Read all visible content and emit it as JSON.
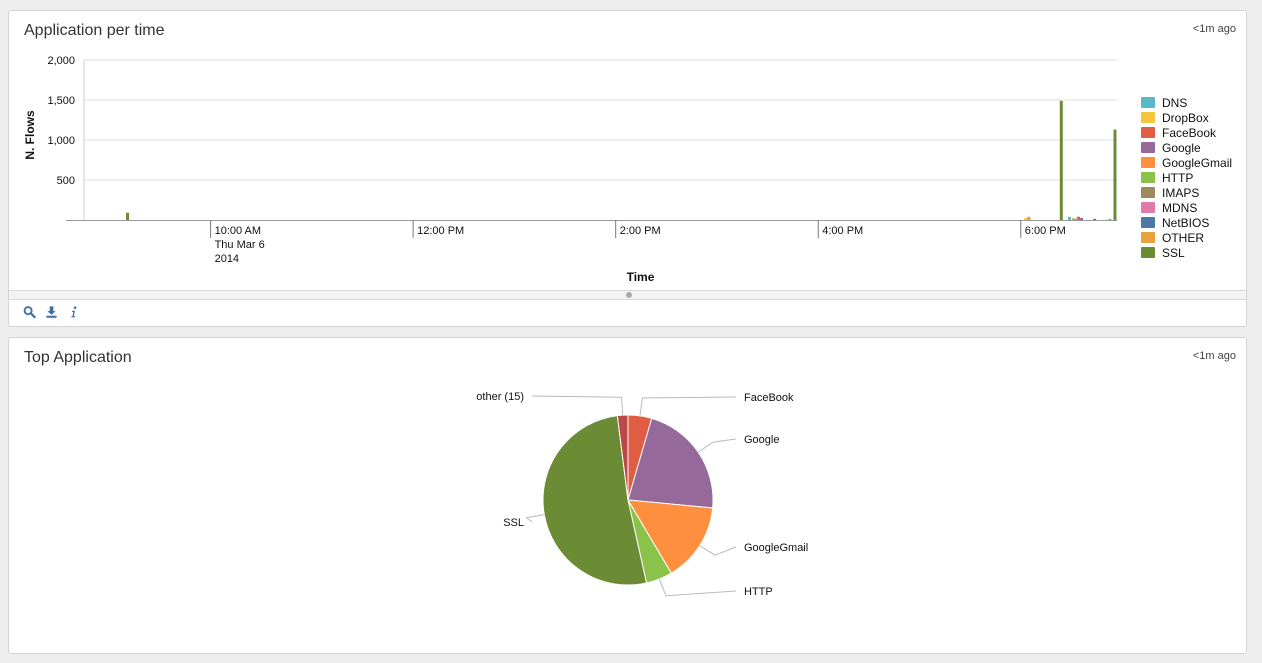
{
  "panels": {
    "timeline": {
      "title": "Application per time",
      "updated": "<1m ago"
    },
    "top": {
      "title": "Top Application",
      "updated": "<1m ago"
    }
  },
  "toolbar": {
    "icons": [
      "search-icon",
      "download-icon",
      "info-icon"
    ]
  },
  "chart_data": [
    {
      "type": "bar",
      "title": "Application per time",
      "xlabel": "Time",
      "ylabel": "N. Flows",
      "ylim": [
        0,
        2000
      ],
      "y_ticks": [
        {
          "value": 500,
          "label": "500"
        },
        {
          "value": 1000,
          "label": "1,000"
        },
        {
          "value": 1500,
          "label": "1,500"
        },
        {
          "value": 2000,
          "label": "2,000"
        }
      ],
      "x_range_hours": [
        8.75,
        18.95
      ],
      "x_ticks": [
        {
          "hour": 10,
          "lines": [
            "10:00 AM",
            "Thu Mar 6",
            "2014"
          ]
        },
        {
          "hour": 12,
          "lines": [
            "12:00 PM"
          ]
        },
        {
          "hour": 14,
          "lines": [
            "2:00 PM"
          ]
        },
        {
          "hour": 16,
          "lines": [
            "4:00 PM"
          ]
        },
        {
          "hour": 18,
          "lines": [
            "6:00 PM"
          ]
        }
      ],
      "grid": true,
      "legend_position": "right",
      "series": [
        {
          "name": "DNS",
          "color": "#5ab8c8",
          "points": [
            {
              "hour": 18.48,
              "value": 40
            },
            {
              "hour": 18.88,
              "value": 15
            }
          ]
        },
        {
          "name": "DropBox",
          "color": "#f5c63c",
          "points": [
            {
              "hour": 18.05,
              "value": 25
            }
          ]
        },
        {
          "name": "FaceBook",
          "color": "#e05d44",
          "points": [
            {
              "hour": 18.57,
              "value": 40
            }
          ]
        },
        {
          "name": "Google",
          "color": "#956a9a",
          "points": [
            {
              "hour": 18.6,
              "value": 25
            }
          ]
        },
        {
          "name": "GoogleGmail",
          "color": "#fd8f3e",
          "points": [
            {
              "hour": 18.08,
              "value": 40
            },
            {
              "hour": 18.55,
              "value": 20
            }
          ]
        },
        {
          "name": "HTTP",
          "color": "#8bc34a",
          "points": [
            {
              "hour": 18.52,
              "value": 20
            }
          ]
        },
        {
          "name": "IMAPS",
          "color": "#9a8a5e",
          "points": []
        },
        {
          "name": "MDNS",
          "color": "#e07aa8",
          "points": []
        },
        {
          "name": "NetBIOS",
          "color": "#4c78a8",
          "points": [
            {
              "hour": 18.73,
              "value": 15
            }
          ]
        },
        {
          "name": "OTHER",
          "color": "#e8a23c",
          "points": []
        },
        {
          "name": "SSL",
          "color": "#6b8c35",
          "points": [
            {
              "hour": 9.18,
              "value": 90
            },
            {
              "hour": 18.4,
              "value": 1490
            },
            {
              "hour": 18.93,
              "value": 1130
            }
          ]
        }
      ]
    },
    {
      "type": "pie",
      "title": "Top Application",
      "slices": [
        {
          "name": "FaceBook",
          "value": 4.5,
          "color": "#e05d44"
        },
        {
          "name": "Google",
          "value": 22,
          "color": "#956a9a"
        },
        {
          "name": "GoogleGmail",
          "value": 15,
          "color": "#fd8f3e"
        },
        {
          "name": "HTTP",
          "value": 5,
          "color": "#8bc34a"
        },
        {
          "name": "SSL",
          "value": 51.5,
          "color": "#6b8c35"
        },
        {
          "name": "other (15)",
          "value": 2,
          "color": "#b94a48"
        }
      ]
    }
  ]
}
